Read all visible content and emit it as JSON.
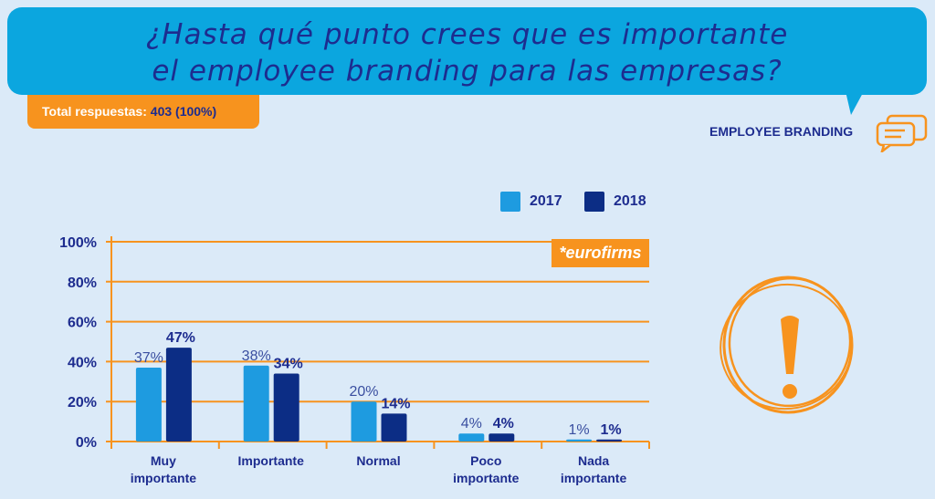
{
  "header": {
    "title_line1": "¿Hasta qué punto crees que es importante",
    "title_line2": "el employee branding para las empresas?",
    "total_label": "Total respuestas:",
    "total_value": "403 (100%)",
    "section_label": "EMPLOYEE BRANDING"
  },
  "logo": "*eurofirms",
  "colors": {
    "s2017": "#1e9be0",
    "s2018": "#0c2d85",
    "accent": "#f7931e",
    "grid": "#f7931e"
  },
  "chart_data": {
    "type": "bar",
    "title": "¿Hasta qué punto crees que es importante el employee branding para las empresas?",
    "categories": [
      [
        "Muy",
        "importante"
      ],
      [
        "Importante"
      ],
      [
        "Normal"
      ],
      [
        "Poco",
        "importante"
      ],
      [
        "Nada",
        "importante"
      ]
    ],
    "series": [
      {
        "name": "2017",
        "values": [
          37,
          38,
          20,
          4,
          1
        ],
        "labels": [
          "37%",
          "38%",
          "20%",
          "4%",
          "1%"
        ]
      },
      {
        "name": "2018",
        "values": [
          47,
          34,
          14,
          4,
          1
        ],
        "labels": [
          "47%",
          "34%",
          "14%",
          "4%",
          "1%"
        ]
      }
    ],
    "yticks": [
      "0%",
      "20%",
      "40%",
      "60%",
      "80%",
      "100%"
    ],
    "ylim": [
      0,
      100
    ],
    "grid": true,
    "legend": "top-right"
  }
}
